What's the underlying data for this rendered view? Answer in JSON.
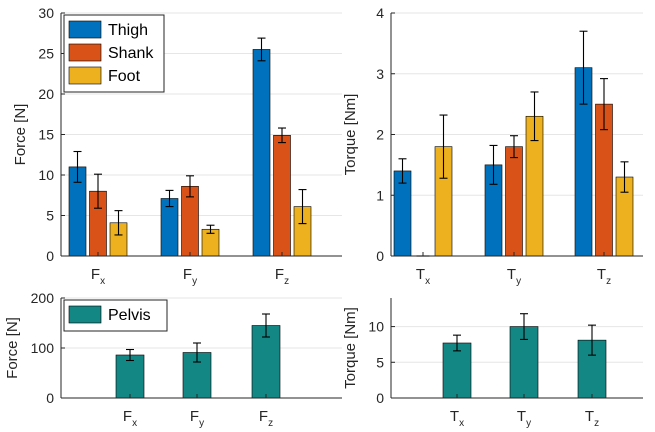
{
  "chart_data": [
    {
      "type": "bar",
      "ylabel": "Force [N]",
      "ylim": [
        0,
        30
      ],
      "yticks": [
        "0",
        "5",
        "10",
        "15",
        "20",
        "25",
        "30"
      ],
      "grid": true,
      "legend": "top-left",
      "categories": [
        {
          "base": "F",
          "sub": "x"
        },
        {
          "base": "F",
          "sub": "y"
        },
        {
          "base": "F",
          "sub": "z"
        }
      ],
      "series": [
        {
          "name": "Thigh",
          "color": "#0072BD",
          "values": [
            11.0,
            7.1,
            25.5
          ],
          "errors": [
            1.9,
            1.0,
            1.4
          ]
        },
        {
          "name": "Shank",
          "color": "#D95319",
          "values": [
            8.0,
            8.6,
            14.9
          ],
          "errors": [
            2.1,
            1.3,
            0.9
          ]
        },
        {
          "name": "Foot",
          "color": "#EDB120",
          "values": [
            4.1,
            3.3,
            6.1
          ],
          "errors": [
            1.5,
            0.5,
            2.1
          ]
        }
      ]
    },
    {
      "type": "bar",
      "ylabel": "Torque [Nm]",
      "ylim": [
        0,
        4
      ],
      "yticks": [
        "0",
        "1",
        "2",
        "3",
        "4"
      ],
      "grid": true,
      "categories": [
        {
          "base": "T",
          "sub": "x"
        },
        {
          "base": "T",
          "sub": "y"
        },
        {
          "base": "T",
          "sub": "z"
        }
      ],
      "series": [
        {
          "name": "Thigh",
          "color": "#0072BD",
          "values": [
            1.4,
            1.5,
            3.1
          ],
          "errors": [
            0.2,
            0.32,
            0.6
          ]
        },
        {
          "name": "Shank",
          "color": "#D95319",
          "values": [
            0.0,
            1.8,
            2.5
          ],
          "errors": [
            0.0,
            0.18,
            0.42
          ]
        },
        {
          "name": "Foot",
          "color": "#EDB120",
          "values": [
            1.8,
            2.3,
            1.3
          ],
          "errors": [
            0.52,
            0.4,
            0.25
          ]
        }
      ]
    },
    {
      "type": "bar",
      "ylabel": "Force [N]",
      "ylim": [
        0,
        200
      ],
      "yticks": [
        "0",
        "100",
        "200"
      ],
      "grid": true,
      "legend": "top-left",
      "categories": [
        {
          "base": "F",
          "sub": "x"
        },
        {
          "base": "F",
          "sub": "y"
        },
        {
          "base": "F",
          "sub": "z"
        }
      ],
      "series": [
        {
          "name": "Pelvis",
          "color": "#138784",
          "values": [
            86,
            91,
            145
          ],
          "errors": [
            11,
            19,
            23
          ]
        }
      ]
    },
    {
      "type": "bar",
      "ylabel": "Torque [Nm]",
      "ylim": [
        0,
        14
      ],
      "yticks": [
        "0",
        "5",
        "10"
      ],
      "grid": true,
      "categories": [
        {
          "base": "T",
          "sub": "x"
        },
        {
          "base": "T",
          "sub": "y"
        },
        {
          "base": "T",
          "sub": "z"
        }
      ],
      "series": [
        {
          "name": "",
          "color": "#138784",
          "values": [
            7.7,
            10.0,
            8.1
          ],
          "errors": [
            1.1,
            1.8,
            2.1
          ]
        }
      ]
    }
  ]
}
